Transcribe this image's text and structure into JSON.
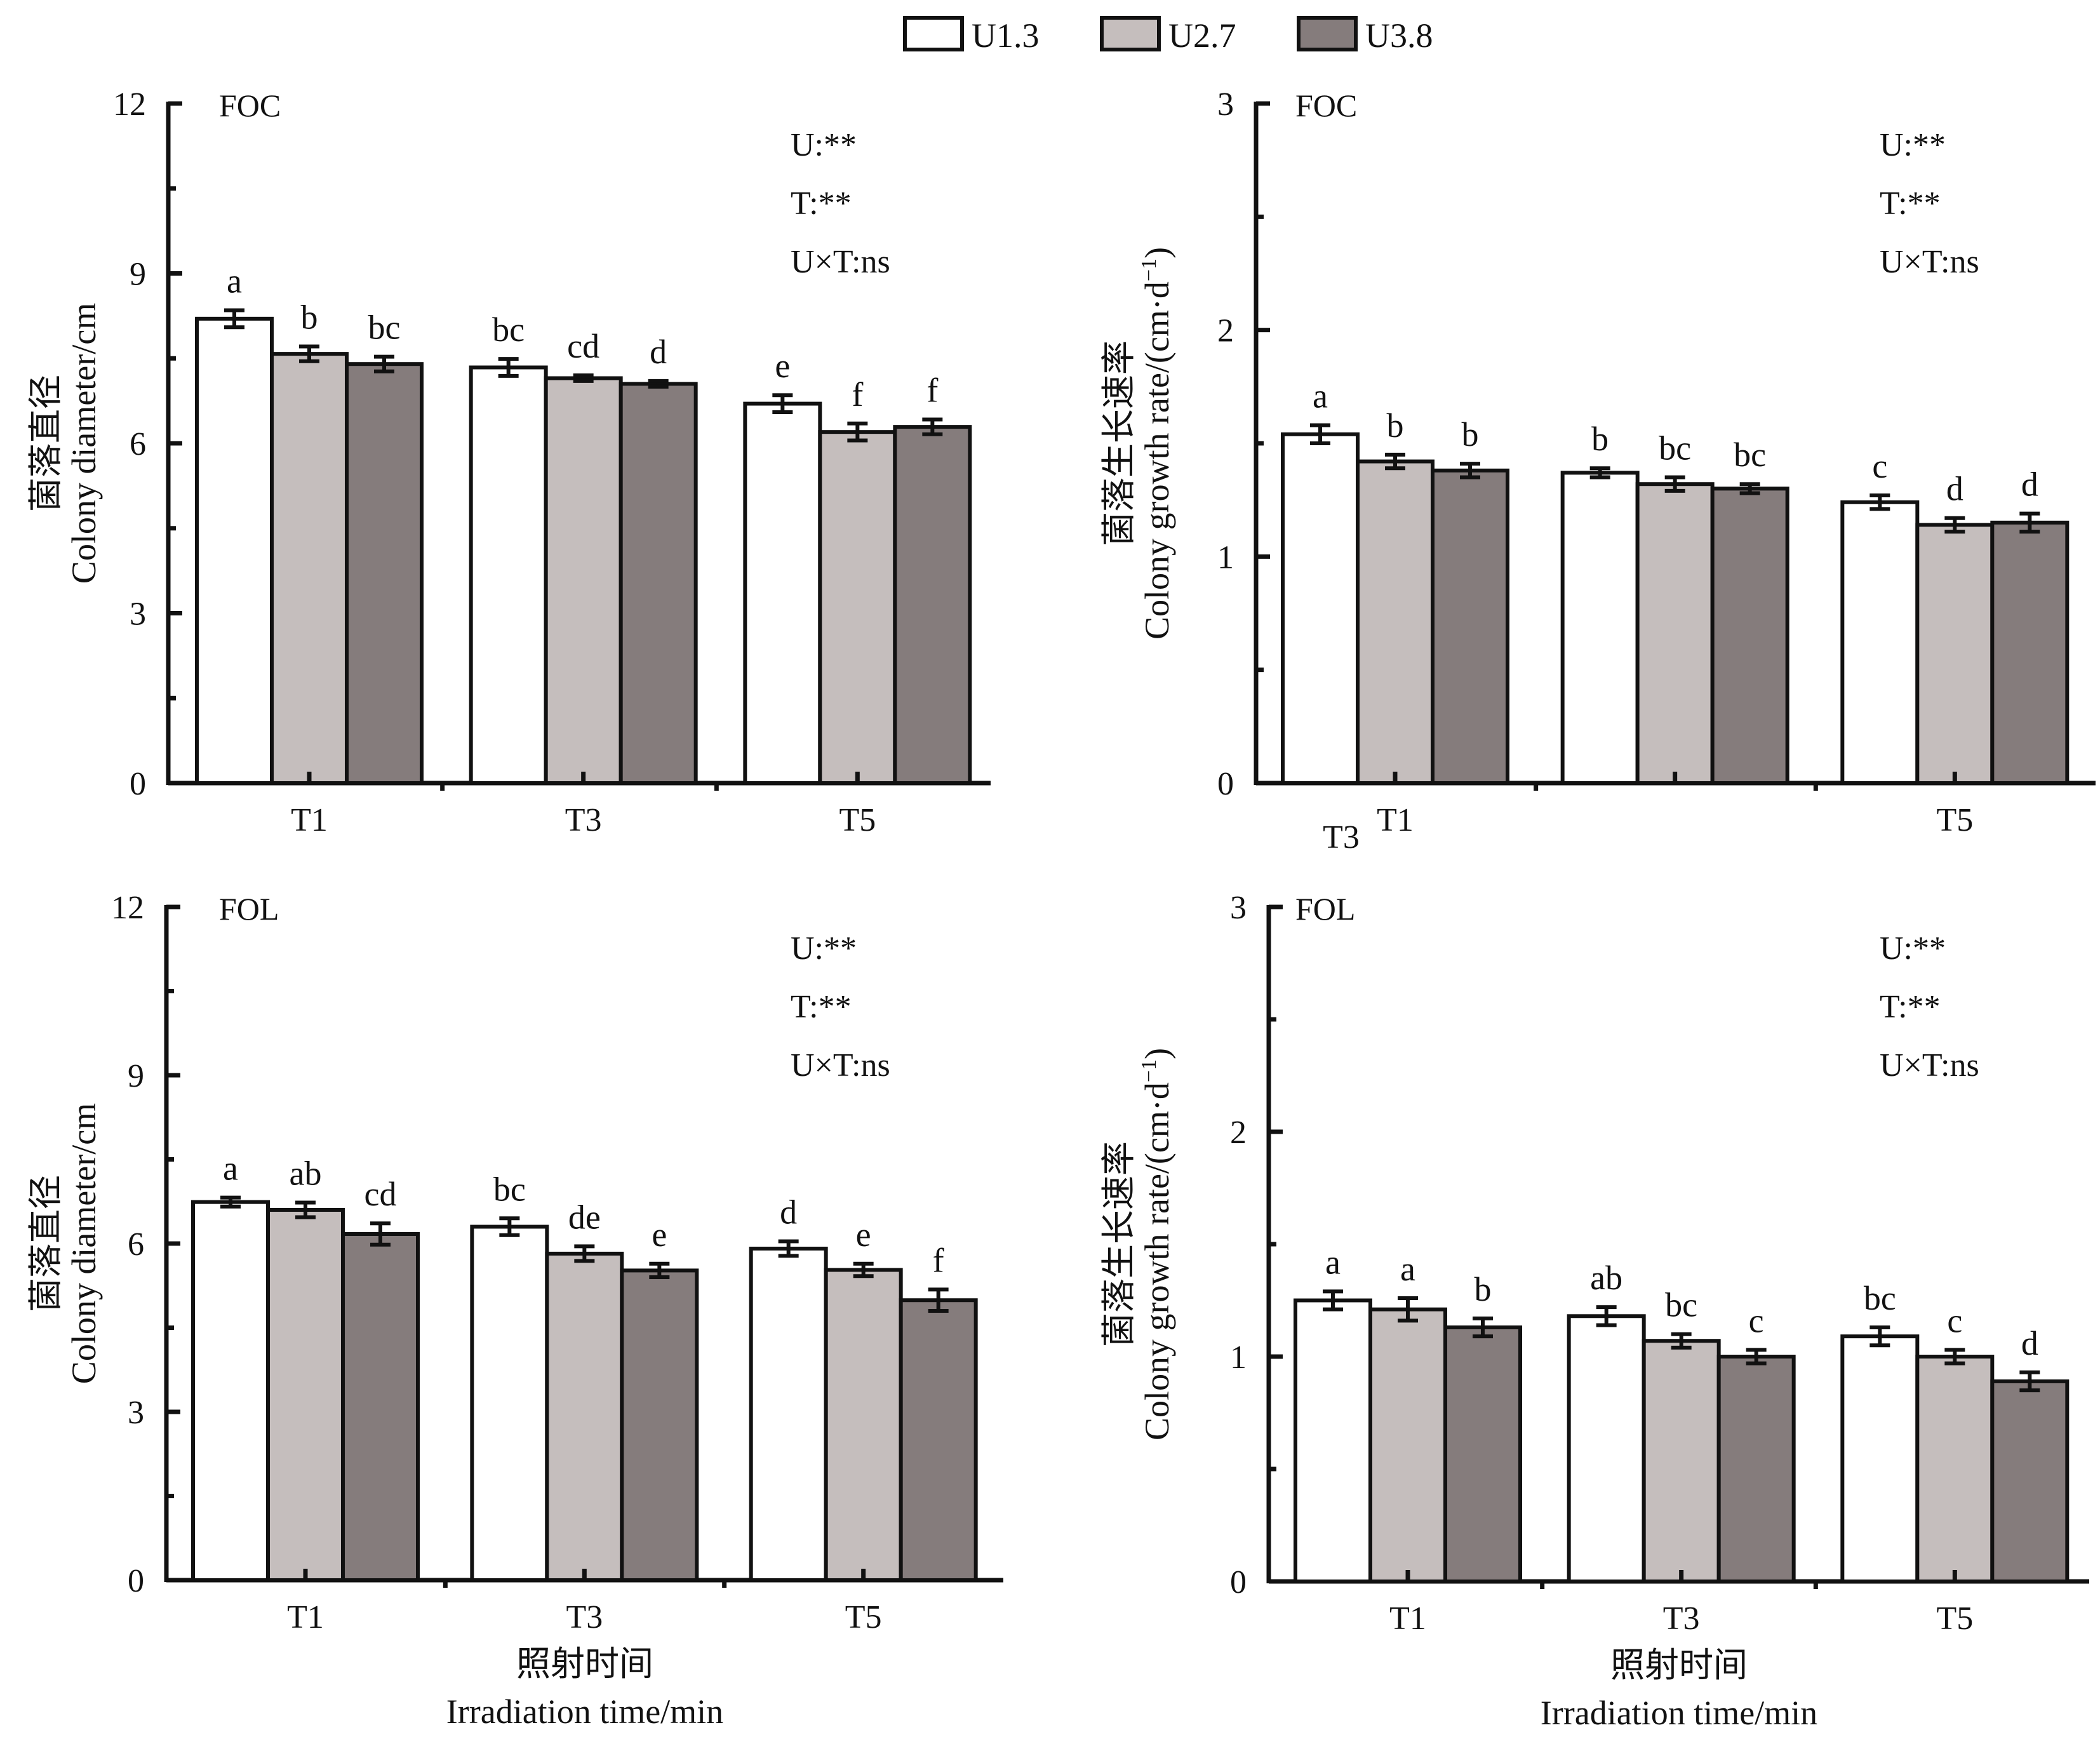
{
  "legend": {
    "items": [
      {
        "label": "U1.3",
        "color": "#ffffff"
      },
      {
        "label": "U2.7",
        "color": "#c5bebd"
      },
      {
        "label": "U3.8",
        "color": "#857c7c"
      }
    ]
  },
  "chart_data": [
    {
      "type": "bar",
      "panel_tag": "FOC",
      "position": "top-left",
      "ylabel_cn": "菌落直径",
      "ylabel_en": "Colony diameter/cm",
      "xlabel_cn": "",
      "xlabel_en": "",
      "ylim": [
        0,
        12
      ],
      "yticks": [
        0,
        3,
        6,
        9,
        12
      ],
      "ytick_labels": [
        "0",
        "3",
        "6",
        "9",
        "12"
      ],
      "minor_ticks": [
        1.5,
        4.5,
        7.5,
        10.5
      ],
      "categories": [
        "T1",
        "T3",
        "T5"
      ],
      "category_labels": [
        "T1",
        "T3",
        "T5"
      ],
      "stats": [
        "U:**",
        "T:**",
        "U×T:ns"
      ],
      "series": [
        {
          "name": "U1.3",
          "values": [
            8.2,
            7.34,
            6.7
          ],
          "errors": [
            0.15,
            0.15,
            0.15
          ],
          "letters": [
            "a",
            "bc",
            "e"
          ]
        },
        {
          "name": "U2.7",
          "values": [
            7.58,
            7.15,
            6.2
          ],
          "errors": [
            0.13,
            0.05,
            0.15
          ],
          "letters": [
            "b",
            "cd",
            "f"
          ]
        },
        {
          "name": "U3.8",
          "values": [
            7.4,
            7.05,
            6.29
          ],
          "errors": [
            0.13,
            0.05,
            0.13
          ],
          "letters": [
            "bc",
            "d",
            "f"
          ]
        }
      ]
    },
    {
      "type": "bar",
      "panel_tag": "FOC",
      "position": "top-right",
      "ylabel_cn": "菌落生长速率",
      "ylabel_en": "Colony growth rate/(cm·d",
      "ylabel_sup": "−1",
      "ylabel_end": ")",
      "xlabel_cn": "",
      "xlabel_en": "",
      "ylim": [
        0,
        3
      ],
      "yticks": [
        0,
        1,
        2,
        3
      ],
      "ytick_labels": [
        "0",
        "1",
        "2",
        "3"
      ],
      "minor_ticks": [
        0.5,
        1.5,
        2.5
      ],
      "categories": [
        "T1",
        "T3",
        "T5"
      ],
      "category_labels": [
        "T1",
        "",
        "T5"
      ],
      "misplaced_label": "T3",
      "stats": [
        "U:**",
        "T:**",
        "U×T:ns"
      ],
      "series": [
        {
          "name": "U1.3",
          "values": [
            1.54,
            1.37,
            1.24
          ],
          "errors": [
            0.04,
            0.02,
            0.03
          ],
          "letters": [
            "a",
            "b",
            "c"
          ]
        },
        {
          "name": "U2.7",
          "values": [
            1.42,
            1.32,
            1.14
          ],
          "errors": [
            0.03,
            0.03,
            0.03
          ],
          "letters": [
            "b",
            "bc",
            "d"
          ]
        },
        {
          "name": "U3.8",
          "values": [
            1.38,
            1.3,
            1.15
          ],
          "errors": [
            0.03,
            0.02,
            0.04
          ],
          "letters": [
            "b",
            "bc",
            "d"
          ]
        }
      ]
    },
    {
      "type": "bar",
      "panel_tag": "FOL",
      "position": "bottom-left",
      "ylabel_cn": "菌落直径",
      "ylabel_en": "Colony diameter/cm",
      "xlabel_cn": "照射时间",
      "xlabel_en": "Irradiation time/min",
      "ylim": [
        0,
        12
      ],
      "yticks": [
        0,
        3,
        6,
        9,
        12
      ],
      "ytick_labels": [
        "0",
        "3",
        "6",
        "9",
        "12"
      ],
      "minor_ticks": [
        1.5,
        4.5,
        7.5,
        10.5
      ],
      "categories": [
        "T1",
        "T3",
        "T5"
      ],
      "category_labels": [
        "T1",
        "T3",
        "T5"
      ],
      "stats": [
        "U:**",
        "T:**",
        "U×T:ns"
      ],
      "series": [
        {
          "name": "U1.3",
          "values": [
            6.74,
            6.3,
            5.91
          ],
          "errors": [
            0.08,
            0.15,
            0.13
          ],
          "letters": [
            "a",
            "bc",
            "d"
          ]
        },
        {
          "name": "U2.7",
          "values": [
            6.6,
            5.82,
            5.53
          ],
          "errors": [
            0.13,
            0.13,
            0.11
          ],
          "letters": [
            "ab",
            "de",
            "e"
          ]
        },
        {
          "name": "U3.8",
          "values": [
            6.17,
            5.52,
            4.99
          ],
          "errors": [
            0.19,
            0.12,
            0.19
          ],
          "letters": [
            "cd",
            "e",
            "f"
          ]
        }
      ]
    },
    {
      "type": "bar",
      "panel_tag": "FOL",
      "position": "bottom-right",
      "ylabel_cn": "菌落生长速率",
      "ylabel_en": "Colony growth rate/(cm·d",
      "ylabel_sup": "−1",
      "ylabel_end": ")",
      "xlabel_cn": "照射时间",
      "xlabel_en": "Irradiation time/min",
      "ylim": [
        0,
        3
      ],
      "yticks": [
        0,
        1,
        2,
        3
      ],
      "ytick_labels": [
        "0",
        "1",
        "2",
        "3"
      ],
      "minor_ticks": [
        0.5,
        1.5,
        2.5
      ],
      "categories": [
        "T1",
        "T3",
        "T5"
      ],
      "category_labels": [
        "T1",
        "T3",
        "T5"
      ],
      "stats": [
        "U:**",
        "T:**",
        "U×T:ns"
      ],
      "series": [
        {
          "name": "U1.3",
          "values": [
            1.25,
            1.18,
            1.09
          ],
          "errors": [
            0.04,
            0.04,
            0.04
          ],
          "letters": [
            "a",
            "ab",
            "bc"
          ]
        },
        {
          "name": "U2.7",
          "values": [
            1.21,
            1.07,
            1.0
          ],
          "errors": [
            0.05,
            0.03,
            0.03
          ],
          "letters": [
            "a",
            "bc",
            "c"
          ]
        },
        {
          "name": "U3.8",
          "values": [
            1.13,
            1.0,
            0.89
          ],
          "errors": [
            0.04,
            0.03,
            0.04
          ],
          "letters": [
            "b",
            "c",
            "d"
          ]
        }
      ]
    }
  ]
}
